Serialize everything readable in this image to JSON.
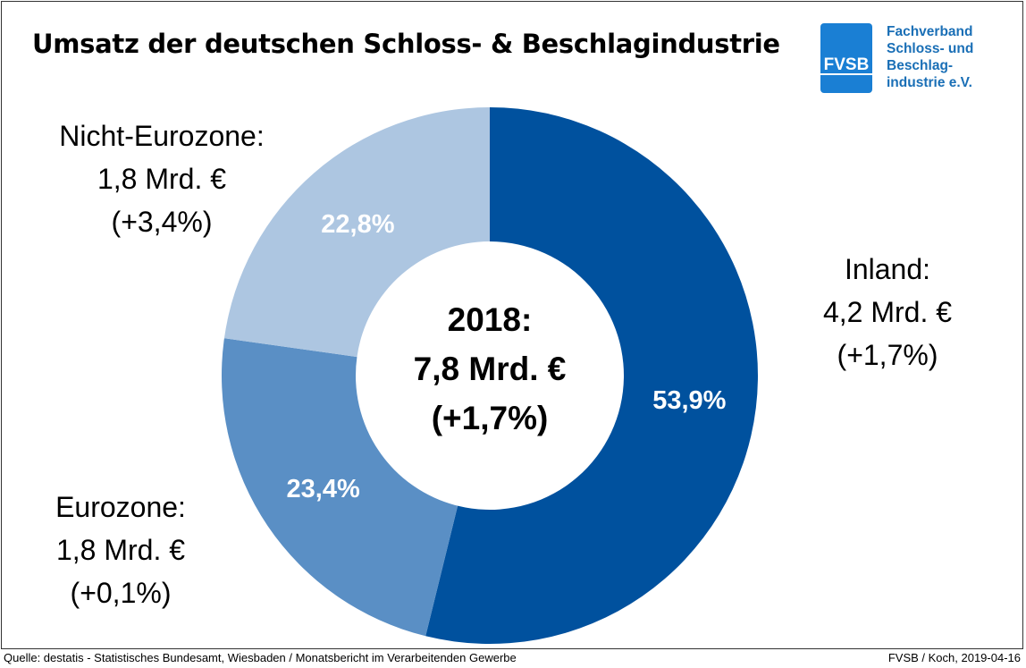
{
  "header": {
    "title": "Umsatz der deutschen Schloss- & Beschlagindustrie"
  },
  "logo": {
    "mark": "FVSB",
    "lines": [
      "Fachverband",
      "Schloss- und",
      "Beschlag-",
      "industrie e.V."
    ],
    "color": "#1a7fd4"
  },
  "chart_data": {
    "type": "pie",
    "donut": true,
    "center_label": [
      "2018:",
      "7,8 Mrd. €",
      "(+1,7%)"
    ],
    "slices": [
      {
        "name": "Inland",
        "percent": 53.9,
        "label": "53,9%",
        "outside": [
          "Inland:",
          "4,2 Mrd. €",
          "(+1,7%)"
        ],
        "color": "#00519e"
      },
      {
        "name": "Eurozone",
        "percent": 23.4,
        "label": "23,4%",
        "outside": [
          "Eurozone:",
          "1,8 Mrd. €",
          "(+0,1%)"
        ],
        "color": "#5a8fc5"
      },
      {
        "name": "Nicht-Eurozone",
        "percent": 22.8,
        "label": "22,8%",
        "outside": [
          "Nicht-Eurozone:",
          "1,8 Mrd. €",
          "(+3,4%)"
        ],
        "color": "#adc6e1"
      }
    ]
  },
  "footer": {
    "source": "Quelle: destatis - Statistisches Bundesamt, Wiesbaden / Monatsbericht im Verarbeitenden Gewerbe",
    "credit": "FVSB / Koch, 2019-04-16"
  }
}
